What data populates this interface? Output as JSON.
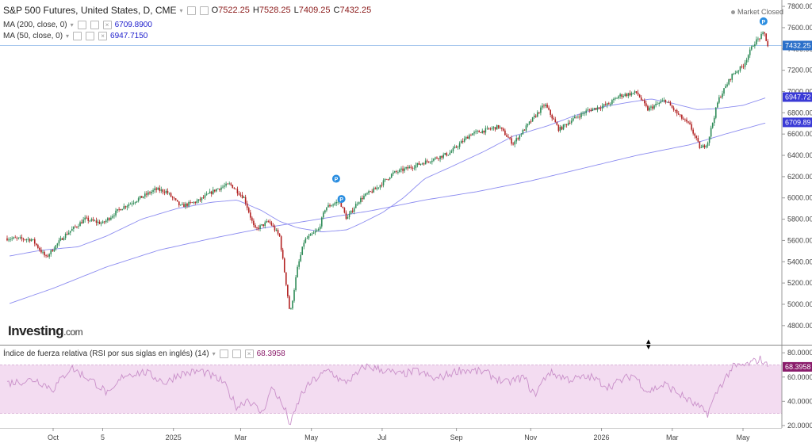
{
  "header": {
    "title": "S&P 500 Futures, United States, D, CME",
    "ohlc": {
      "o_label": "O",
      "o": "7522.25",
      "h_label": "H",
      "h": "7528.25",
      "l_label": "L",
      "l": "7409.25",
      "c_label": "C",
      "c": "7432.25"
    },
    "market_status": "Market Closed"
  },
  "indicators": {
    "ma200": {
      "label": "MA (200, close, 0)",
      "value": "6709.8900",
      "tag": "6709.89"
    },
    "ma50": {
      "label": "MA (50, close, 0)",
      "value": "6947.7150",
      "tag": "6947.72"
    },
    "rsi": {
      "label": "Índice de fuerza relativa (RSI por sus siglas en inglés) (14)",
      "value": "68.3958",
      "tag": "68.3958"
    }
  },
  "price_tag": "7432.25",
  "brand": {
    "name": "Investing",
    "suffix": ".com"
  },
  "colors": {
    "up": "#2e8b57",
    "down": "#b22222",
    "ma": "#8c8cf0",
    "rsi_line": "#c98fc9",
    "rsi_band": "#f3dcf1",
    "tag_price": "#2a6fc9",
    "tag_ma": "#3a3ad6",
    "tag_rsi": "#8a1c6b"
  },
  "chart_data": {
    "type": "candlestick",
    "x_ticks": [
      "Oct",
      "5",
      "2025",
      "Mar",
      "May",
      "Jul",
      "Sep",
      "Nov",
      "2026",
      "Mar",
      "May"
    ],
    "x_tick_pos": [
      0.0,
      1.4,
      3.4,
      5.3,
      7.3,
      9.3,
      11.4,
      13.5,
      15.5,
      17.5,
      19.5
    ],
    "y_ticks": [
      4800,
      5000,
      5200,
      5400,
      5600,
      5800,
      6000,
      6200,
      6400,
      6600,
      6800,
      7000,
      7200,
      7400,
      7600,
      7800
    ],
    "ylim": [
      4620,
      7860
    ],
    "anchors_price": [
      [
        -1.3,
        5620
      ],
      [
        -0.6,
        5610
      ],
      [
        -0.2,
        5440
      ],
      [
        0.3,
        5640
      ],
      [
        0.9,
        5800
      ],
      [
        1.4,
        5760
      ],
      [
        1.9,
        5900
      ],
      [
        2.3,
        5970
      ],
      [
        2.9,
        6080
      ],
      [
        3.2,
        6060
      ],
      [
        3.6,
        5920
      ],
      [
        4.1,
        5970
      ],
      [
        4.6,
        6080
      ],
      [
        5.0,
        6130
      ],
      [
        5.4,
        6000
      ],
      [
        5.7,
        5700
      ],
      [
        6.1,
        5780
      ],
      [
        6.4,
        5640
      ],
      [
        6.6,
        5160
      ],
      [
        6.7,
        4900
      ],
      [
        6.9,
        5330
      ],
      [
        7.1,
        5600
      ],
      [
        7.5,
        5700
      ],
      [
        7.7,
        5910
      ],
      [
        8.1,
        5970
      ],
      [
        8.3,
        5800
      ],
      [
        8.6,
        5960
      ],
      [
        8.8,
        6020
      ],
      [
        9.1,
        6080
      ],
      [
        9.6,
        6230
      ],
      [
        10.2,
        6300
      ],
      [
        10.7,
        6360
      ],
      [
        11.2,
        6420
      ],
      [
        11.8,
        6600
      ],
      [
        12.6,
        6670
      ],
      [
        13.0,
        6510
      ],
      [
        13.5,
        6720
      ],
      [
        13.9,
        6880
      ],
      [
        14.3,
        6640
      ],
      [
        14.6,
        6720
      ],
      [
        15.1,
        6820
      ],
      [
        15.7,
        6880
      ],
      [
        16.0,
        6960
      ],
      [
        16.5,
        6990
      ],
      [
        16.8,
        6830
      ],
      [
        17.3,
        6920
      ],
      [
        17.7,
        6770
      ],
      [
        18.0,
        6680
      ],
      [
        18.3,
        6460
      ],
      [
        18.5,
        6520
      ],
      [
        18.8,
        6920
      ],
      [
        19.2,
        7160
      ],
      [
        19.5,
        7240
      ],
      [
        19.8,
        7450
      ],
      [
        20.1,
        7550
      ],
      [
        20.2,
        7430
      ]
    ],
    "ma50_pts": [
      [
        -1.3,
        5450
      ],
      [
        -0.3,
        5510
      ],
      [
        0.7,
        5540
      ],
      [
        1.5,
        5640
      ],
      [
        2.5,
        5800
      ],
      [
        3.5,
        5900
      ],
      [
        4.5,
        5960
      ],
      [
        5.2,
        5980
      ],
      [
        5.9,
        5880
      ],
      [
        6.4,
        5780
      ],
      [
        6.9,
        5720
      ],
      [
        7.6,
        5680
      ],
      [
        8.3,
        5700
      ],
      [
        8.7,
        5760
      ],
      [
        9.3,
        5860
      ],
      [
        9.9,
        6000
      ],
      [
        10.5,
        6180
      ],
      [
        11.3,
        6300
      ],
      [
        12.2,
        6440
      ],
      [
        13.0,
        6580
      ],
      [
        14.0,
        6680
      ],
      [
        14.8,
        6780
      ],
      [
        15.6,
        6860
      ],
      [
        16.3,
        6900
      ],
      [
        16.9,
        6930
      ],
      [
        17.5,
        6890
      ],
      [
        18.2,
        6830
      ],
      [
        18.8,
        6840
      ],
      [
        19.5,
        6870
      ],
      [
        20.2,
        6947
      ]
    ],
    "ma200_pts": [
      [
        -1.3,
        5000
      ],
      [
        0.0,
        5150
      ],
      [
        1.5,
        5350
      ],
      [
        3.0,
        5510
      ],
      [
        4.5,
        5620
      ],
      [
        6.0,
        5720
      ],
      [
        7.5,
        5800
      ],
      [
        9.0,
        5880
      ],
      [
        10.5,
        5980
      ],
      [
        12.0,
        6060
      ],
      [
        13.5,
        6160
      ],
      [
        15.0,
        6280
      ],
      [
        16.5,
        6400
      ],
      [
        18.0,
        6500
      ],
      [
        19.0,
        6600
      ],
      [
        20.2,
        6710
      ]
    ],
    "rsi_ylim": [
      18,
      86
    ],
    "rsi_ticks": [
      20,
      40,
      60,
      80
    ],
    "rsi_band": [
      30,
      70
    ],
    "rsi_anchors": [
      [
        -1.3,
        55
      ],
      [
        -0.5,
        58
      ],
      [
        0.0,
        50
      ],
      [
        0.5,
        68
      ],
      [
        1.2,
        55
      ],
      [
        1.6,
        45
      ],
      [
        2.0,
        62
      ],
      [
        2.6,
        64
      ],
      [
        3.2,
        55
      ],
      [
        3.5,
        62
      ],
      [
        4.2,
        65
      ],
      [
        4.8,
        56
      ],
      [
        5.2,
        35
      ],
      [
        5.5,
        42
      ],
      [
        5.9,
        30
      ],
      [
        6.2,
        52
      ],
      [
        6.6,
        30
      ],
      [
        6.7,
        20
      ],
      [
        7.0,
        45
      ],
      [
        7.3,
        56
      ],
      [
        7.8,
        66
      ],
      [
        8.2,
        55
      ],
      [
        8.6,
        62
      ],
      [
        8.8,
        69
      ],
      [
        9.3,
        66
      ],
      [
        9.8,
        62
      ],
      [
        10.3,
        65
      ],
      [
        10.8,
        58
      ],
      [
        11.5,
        66
      ],
      [
        12.2,
        64
      ],
      [
        12.8,
        55
      ],
      [
        13.3,
        60
      ],
      [
        13.6,
        45
      ],
      [
        14.0,
        64
      ],
      [
        14.6,
        58
      ],
      [
        15.2,
        60
      ],
      [
        15.7,
        52
      ],
      [
        16.4,
        62
      ],
      [
        16.8,
        48
      ],
      [
        17.3,
        54
      ],
      [
        17.8,
        44
      ],
      [
        18.2,
        36
      ],
      [
        18.5,
        30
      ],
      [
        18.8,
        50
      ],
      [
        19.2,
        68
      ],
      [
        19.6,
        70
      ],
      [
        20.0,
        75
      ],
      [
        20.2,
        68.3958
      ]
    ],
    "markers_p": [
      [
        8.0,
        6180
      ],
      [
        8.15,
        5990
      ],
      [
        20.08,
        7660
      ]
    ],
    "last_price": 7432.25,
    "ma50_last": 6947.72,
    "ma200_last": 6709.89,
    "rsi_last": 68.3958
  }
}
